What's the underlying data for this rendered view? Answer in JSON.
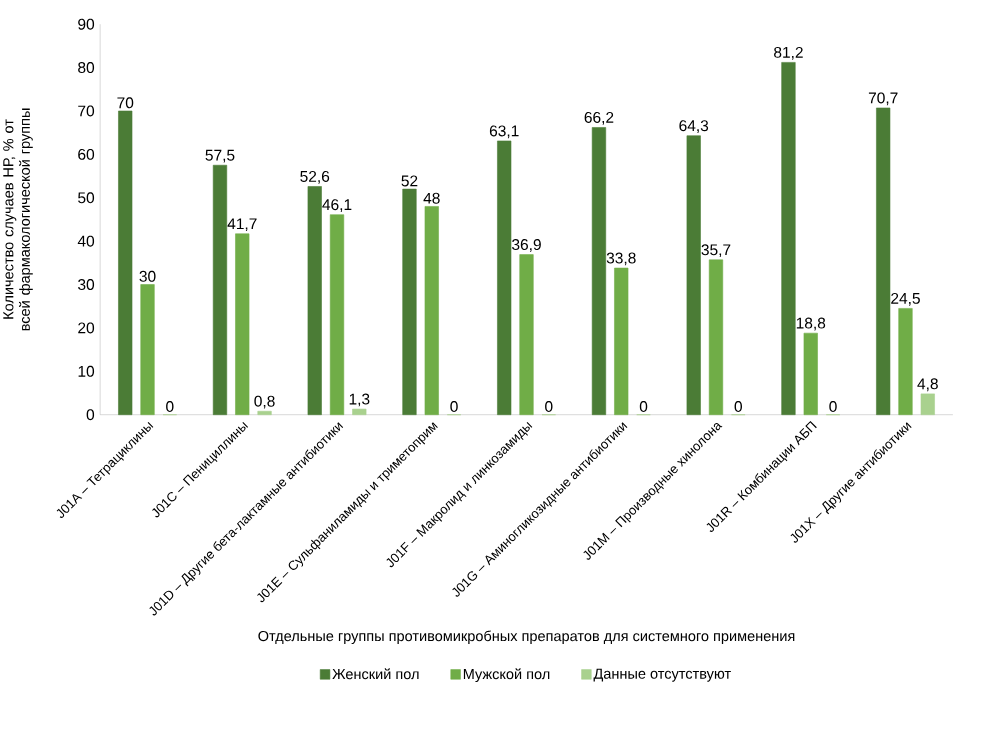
{
  "chart_data": {
    "type": "bar",
    "xlabel": "Отдельные группы противомикробных препаратов для системного применения",
    "ylabel": "Количество случаев НР, % от всей фармакологической группы",
    "categories": [
      "J01A – Тетрациклины",
      "J01C – Пенициллины",
      "J01D – Другие бета-лактамные антибиотики",
      "J01E – Сульфаниламиды и триметоприм",
      "J01F – Макролид и линкозамиды",
      "J01G – Аминогликозидные антибиотики",
      "J01M – Производные хинолона",
      "J01R – Комбинации АБП",
      "J01X – Другие антибиотики"
    ],
    "series": [
      {
        "name": "Женский пол",
        "color": "#4b7c36",
        "values": [
          70,
          57.5,
          52.6,
          52,
          63.1,
          66.2,
          64.3,
          81.2,
          70.7
        ],
        "value_labels": [
          "70",
          "57,5",
          "52,6",
          "52",
          "63,1",
          "66,2",
          "64,3",
          "81,2",
          "70,7"
        ]
      },
      {
        "name": "Мужской пол",
        "color": "#70ad47",
        "values": [
          30,
          41.7,
          46.1,
          48,
          36.9,
          33.8,
          35.7,
          18.8,
          24.5
        ],
        "value_labels": [
          "30",
          "41,7",
          "46,1",
          "48",
          "36,9",
          "33,8",
          "35,7",
          "18,8",
          "24,5"
        ]
      },
      {
        "name": "Данные отсутствуют",
        "color": "#a9d18e",
        "values": [
          0,
          0.8,
          1.3,
          0,
          0,
          0,
          0,
          0,
          4.8
        ],
        "value_labels": [
          "0",
          "0,8",
          "1,3",
          "0",
          "0",
          "0",
          "0",
          "0",
          "4,8"
        ]
      }
    ],
    "ylim": [
      0,
      90
    ],
    "yticks": [
      0,
      10,
      20,
      30,
      40,
      50,
      60,
      70,
      80,
      90
    ],
    "legend": "bottom"
  }
}
